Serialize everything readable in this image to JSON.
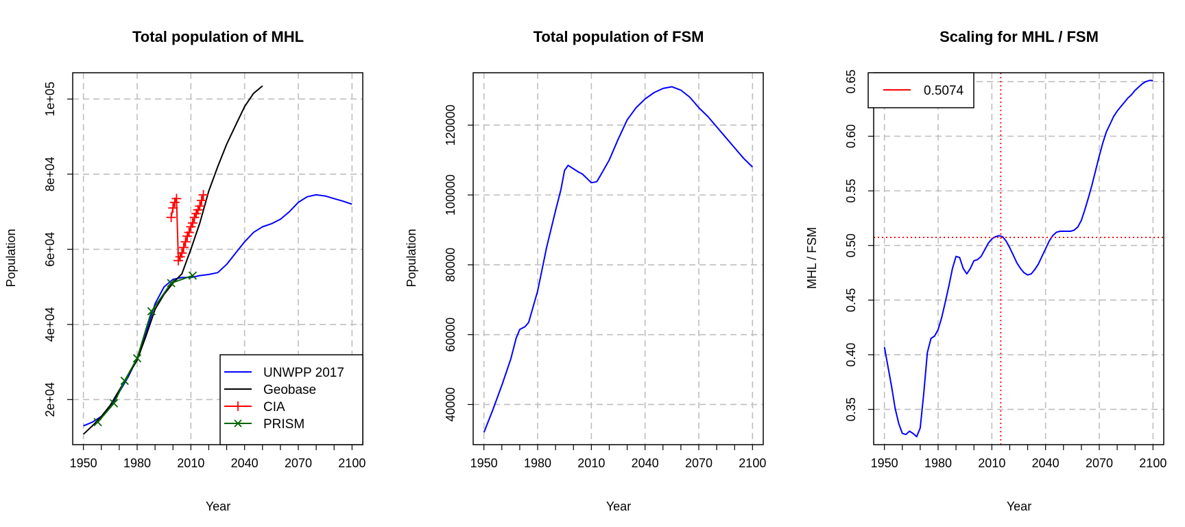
{
  "colors": {
    "unwpp": "#0000ff",
    "geobase": "#000000",
    "cia": "#ff0000",
    "prism": "#006400",
    "grid": "#bebebe",
    "ref_line": "#ff0000"
  },
  "chart_data": [
    {
      "type": "line",
      "title": "Total population of MHL",
      "xlabel": "Year",
      "ylabel": "Population",
      "xlim": [
        1944,
        2106
      ],
      "ylim": [
        8000,
        107000
      ],
      "xticks": [
        1950,
        1980,
        2010,
        2040,
        2070,
        2100
      ],
      "xtick_labels": [
        "1950",
        "1980",
        "2010",
        "2040",
        "2070",
        "2100"
      ],
      "yticks": [
        20000,
        40000,
        60000,
        80000,
        100000
      ],
      "ytick_labels": [
        "2e+04",
        "4e+04",
        "6e+04",
        "8e+04",
        "1e+05"
      ],
      "grid": true,
      "legend": {
        "position": "bottom-right",
        "entries": [
          "UNWPP 2017",
          "Geobase",
          "CIA",
          "PRISM"
        ]
      },
      "series": [
        {
          "name": "UNWPP 2017",
          "color": "#0000ff",
          "marker": "none",
          "x": [
            1950,
            1955,
            1960,
            1965,
            1970,
            1975,
            1980,
            1985,
            1990,
            1995,
            2000,
            2005,
            2010,
            2015,
            2020,
            2025,
            2030,
            2035,
            2040,
            2045,
            2050,
            2055,
            2060,
            2065,
            2070,
            2075,
            2080,
            2085,
            2090,
            2095,
            2100
          ],
          "y": [
            13000,
            14000,
            15500,
            18000,
            22000,
            26000,
            31000,
            38000,
            45500,
            50000,
            52000,
            52500,
            52500,
            53000,
            53300,
            53800,
            56000,
            59000,
            62000,
            64500,
            66000,
            66800,
            68000,
            70000,
            72500,
            74000,
            74500,
            74200,
            73500,
            72800,
            72000
          ]
        },
        {
          "name": "Geobase",
          "color": "#000000",
          "marker": "none",
          "x": [
            1950,
            1955,
            1960,
            1965,
            1970,
            1975,
            1980,
            1985,
            1990,
            1995,
            2000,
            2005,
            2010,
            2015,
            2020,
            2025,
            2030,
            2035,
            2040,
            2045,
            2050
          ],
          "y": [
            10800,
            13000,
            15500,
            18500,
            22500,
            26500,
            30500,
            37000,
            44000,
            48000,
            51000,
            53500,
            60000,
            67000,
            75500,
            82000,
            88000,
            93000,
            98000,
            101500,
            103500
          ]
        },
        {
          "name": "CIA",
          "color": "#ff0000",
          "marker": "plus",
          "x": [
            1999,
            2000,
            2001,
            2002,
            2003,
            2004,
            2005,
            2006,
            2007,
            2008,
            2009,
            2010,
            2011,
            2012,
            2013,
            2014,
            2015,
            2016,
            2017
          ],
          "y": [
            68500,
            71000,
            72500,
            73500,
            57000,
            58000,
            59000,
            60500,
            62000,
            63500,
            64500,
            66000,
            67000,
            68500,
            69500,
            70500,
            71500,
            73000,
            74500
          ]
        },
        {
          "name": "PRISM",
          "color": "#006400",
          "marker": "x",
          "x": [
            1958,
            1967,
            1973,
            1980,
            1988,
            1999,
            2011
          ],
          "y": [
            14000,
            19000,
            25000,
            31000,
            43500,
            51000,
            53000
          ]
        }
      ]
    },
    {
      "type": "line",
      "title": "Total population of FSM",
      "xlabel": "Year",
      "ylabel": "Population",
      "xlim": [
        1944,
        2106
      ],
      "ylim": [
        28500,
        135000
      ],
      "xticks": [
        1950,
        1980,
        2010,
        2040,
        2070,
        2100
      ],
      "xtick_labels": [
        "1950",
        "1980",
        "2010",
        "2040",
        "2070",
        "2100"
      ],
      "yticks": [
        40000,
        60000,
        80000,
        100000,
        120000
      ],
      "ytick_labels": [
        "40000",
        "60000",
        "80000",
        "100000",
        "120000"
      ],
      "grid": true,
      "series": [
        {
          "color": "#0000ff",
          "marker": "none",
          "x": [
            1950,
            1955,
            1960,
            1965,
            1968,
            1970,
            1973,
            1975,
            1980,
            1985,
            1990,
            1993,
            1995,
            1997,
            2000,
            2003,
            2005,
            2008,
            2010,
            2013,
            2015,
            2020,
            2025,
            2030,
            2035,
            2040,
            2045,
            2050,
            2055,
            2060,
            2065,
            2070,
            2075,
            2080,
            2085,
            2090,
            2095,
            2100
          ],
          "y": [
            32000,
            38500,
            45500,
            53000,
            59000,
            61500,
            62300,
            63500,
            72500,
            85000,
            95500,
            101500,
            107000,
            108500,
            107500,
            106500,
            106000,
            104500,
            103500,
            103800,
            105500,
            110000,
            116000,
            121500,
            125000,
            127500,
            129300,
            130500,
            131000,
            130000,
            128000,
            125000,
            122500,
            119500,
            116500,
            113500,
            110500,
            108000
          ]
        }
      ]
    },
    {
      "type": "line",
      "title": "Scaling for MHL / FSM",
      "xlabel": "Year",
      "ylabel": "MHL / FSM",
      "xlim": [
        1944,
        2106
      ],
      "ylim": [
        0.3177,
        0.6581
      ],
      "xticks": [
        1950,
        1980,
        2010,
        2040,
        2070,
        2100
      ],
      "xtick_labels": [
        "1950",
        "1980",
        "2010",
        "2040",
        "2070",
        "2100"
      ],
      "yticks": [
        0.35,
        0.4,
        0.45,
        0.5,
        0.55,
        0.6,
        0.65
      ],
      "ytick_labels": [
        "0.35",
        "0.40",
        "0.45",
        "0.50",
        "0.55",
        "0.60",
        "0.65"
      ],
      "grid": true,
      "legend": {
        "position": "top-left",
        "entries": [
          "0.5074"
        ]
      },
      "reference_lines": {
        "hline": 0.5074,
        "vline": 2015,
        "color": "#ff0000",
        "style": "dotted"
      },
      "series": [
        {
          "color": "#0000ff",
          "marker": "none",
          "x": [
            1950,
            1952,
            1954,
            1956,
            1958,
            1960,
            1962,
            1964,
            1966,
            1968,
            1970,
            1972,
            1974,
            1976,
            1978,
            1980,
            1982,
            1984,
            1986,
            1988,
            1990,
            1992,
            1994,
            1996,
            1998,
            2000,
            2002,
            2004,
            2006,
            2008,
            2010,
            2012,
            2014,
            2016,
            2018,
            2020,
            2022,
            2024,
            2026,
            2028,
            2030,
            2032,
            2034,
            2036,
            2038,
            2040,
            2042,
            2044,
            2046,
            2048,
            2050,
            2052,
            2054,
            2056,
            2058,
            2060,
            2062,
            2064,
            2066,
            2068,
            2070,
            2072,
            2074,
            2076,
            2078,
            2080,
            2082,
            2084,
            2086,
            2088,
            2090,
            2092,
            2094,
            2096,
            2098,
            2100
          ],
          "y": [
            0.407,
            0.389,
            0.371,
            0.351,
            0.337,
            0.328,
            0.327,
            0.33,
            0.328,
            0.325,
            0.333,
            0.365,
            0.402,
            0.415,
            0.417,
            0.423,
            0.434,
            0.448,
            0.463,
            0.479,
            0.49,
            0.489,
            0.479,
            0.474,
            0.479,
            0.486,
            0.487,
            0.49,
            0.496,
            0.502,
            0.506,
            0.508,
            0.509,
            0.508,
            0.504,
            0.498,
            0.491,
            0.484,
            0.479,
            0.475,
            0.473,
            0.474,
            0.478,
            0.483,
            0.49,
            0.497,
            0.504,
            0.509,
            0.512,
            0.513,
            0.513,
            0.513,
            0.513,
            0.514,
            0.517,
            0.523,
            0.533,
            0.544,
            0.556,
            0.569,
            0.582,
            0.594,
            0.604,
            0.611,
            0.618,
            0.623,
            0.627,
            0.631,
            0.635,
            0.638,
            0.642,
            0.645,
            0.648,
            0.65,
            0.651,
            0.651
          ]
        }
      ]
    }
  ]
}
